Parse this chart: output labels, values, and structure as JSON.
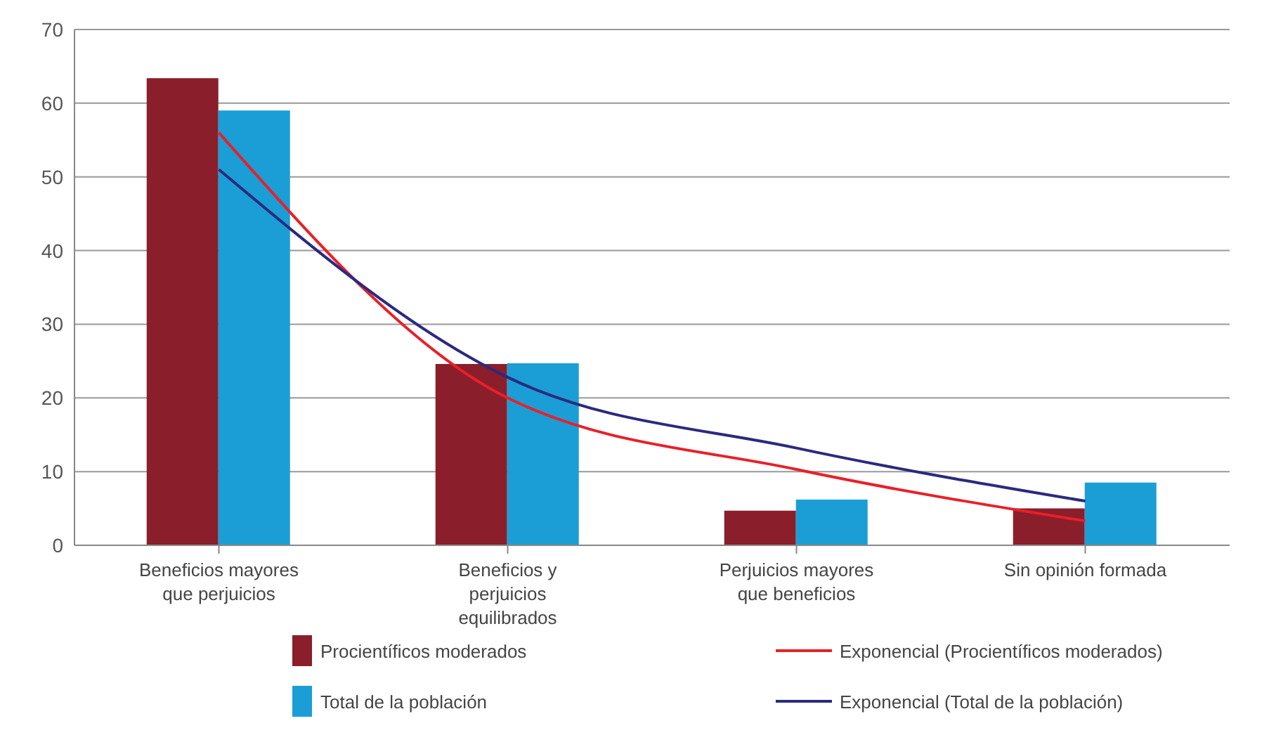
{
  "chart_data": {
    "type": "bar",
    "categories": [
      "Beneficios mayores que perjuicios",
      "Beneficios y perjuicios equilibrados",
      "Perjuicios mayores que beneficios",
      "Sin opinión formada"
    ],
    "series": [
      {
        "name": "Procientíficos moderados",
        "color": "#8b1e2b",
        "values": [
          63.4,
          24.6,
          4.7,
          5
        ]
      },
      {
        "name": "Total de la población",
        "color": "#1b9ed6",
        "values": [
          59,
          24.7,
          6.2,
          8.5
        ]
      },
      {
        "name": "Exponencial (Procientíficos moderados)",
        "type": "line",
        "color": "#e8202a",
        "values": [
          56,
          20,
          10.3,
          3.3
        ]
      },
      {
        "name": "Exponencial (Total de la población)",
        "type": "line",
        "color": "#2b2a7e",
        "values": [
          51,
          22.8,
          13.2,
          6
        ]
      }
    ],
    "ylim": [
      0,
      70
    ],
    "yticks": [
      0,
      10,
      20,
      30,
      40,
      50,
      60,
      70
    ],
    "grid": "y",
    "legend": "bottom",
    "marker": "none"
  }
}
